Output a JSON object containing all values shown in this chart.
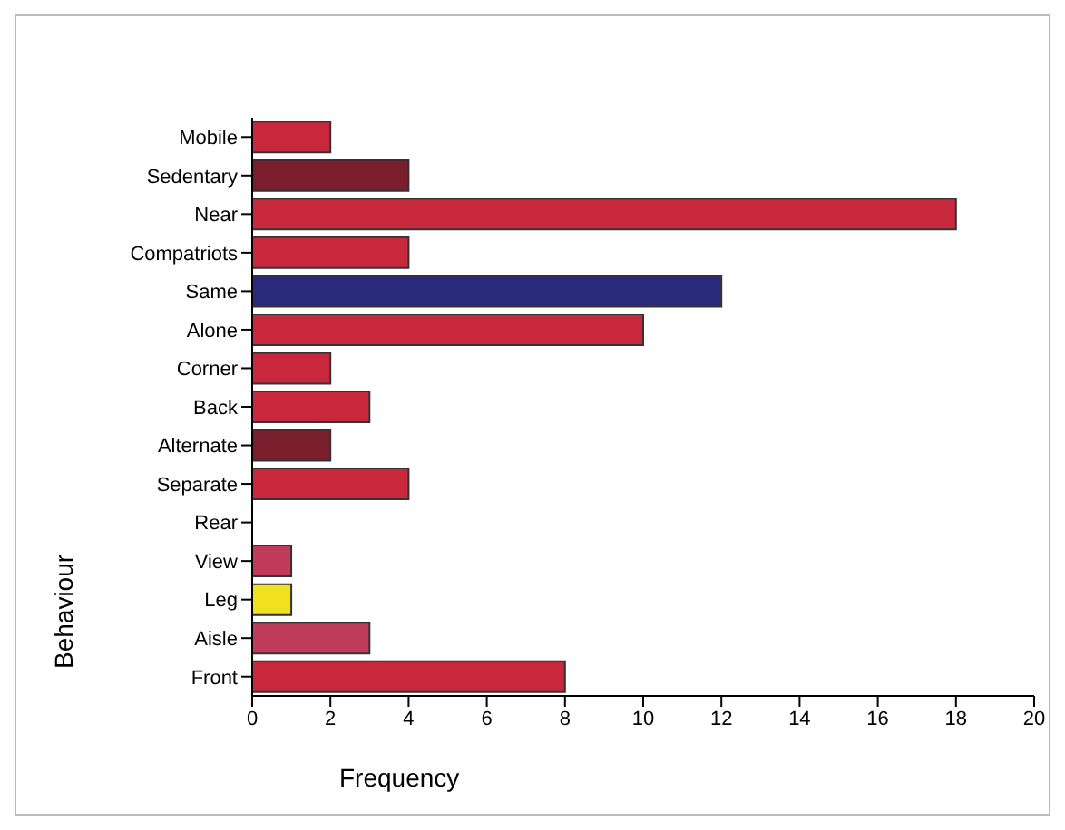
{
  "chart_data": {
    "type": "bar",
    "orientation": "horizontal",
    "xlabel": "Frequency",
    "ylabel": "Behaviour",
    "categories": [
      "Mobile",
      "Sedentary",
      "Near",
      "Compatriots",
      "Same",
      "Alone",
      "Corner",
      "Back",
      "Alternate",
      "Separate",
      "Rear",
      "View",
      "Leg",
      "Aisle",
      "Front"
    ],
    "values": [
      2,
      4,
      18,
      4,
      12,
      10,
      2,
      3,
      2,
      4,
      0,
      1,
      1,
      3,
      8
    ],
    "colors": [
      "#c8283c",
      "#7a1e2e",
      "#c8283c",
      "#c8283c",
      "#2a2a7a",
      "#c8283c",
      "#c8283c",
      "#c8283c",
      "#7a1e2e",
      "#c8283c",
      "#c8283c",
      "#c03a5a",
      "#f0e020",
      "#c03a5a",
      "#c8283c"
    ],
    "xlim": [
      0,
      20
    ],
    "xticks": [
      0,
      2,
      4,
      6,
      8,
      10,
      12,
      14,
      16,
      18,
      20
    ]
  }
}
